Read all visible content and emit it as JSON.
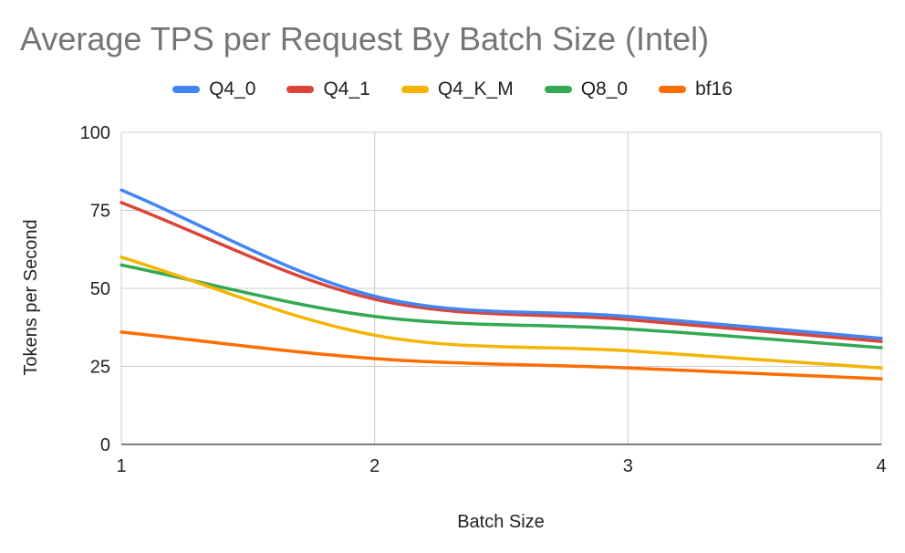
{
  "chart_data": {
    "type": "line",
    "title": "Average TPS per Request By Batch Size (Intel)",
    "xlabel": "Batch Size",
    "ylabel": "Tokens per Second",
    "x": [
      1,
      2,
      3,
      4
    ],
    "x_tick_labels": [
      "1",
      "2",
      "3",
      "4"
    ],
    "ylim": [
      0,
      100
    ],
    "y_ticks": [
      0,
      25,
      50,
      75,
      100
    ],
    "y_tick_labels": [
      "0",
      "25",
      "50",
      "75",
      "100"
    ],
    "grid": true,
    "legend_position": "top-center",
    "series": [
      {
        "name": "Q4_0",
        "color": "#4285F4",
        "values": [
          81.5,
          47.5,
          41,
          34
        ]
      },
      {
        "name": "Q4_1",
        "color": "#DB4437",
        "values": [
          77.5,
          46.5,
          40,
          33
        ]
      },
      {
        "name": "Q4_K_M",
        "color": "#F4B400",
        "values": [
          60,
          35,
          30,
          24.5
        ]
      },
      {
        "name": "Q8_0",
        "color": "#34A853",
        "values": [
          57.5,
          41,
          37,
          31
        ]
      },
      {
        "name": "bf16",
        "color": "#FF6D01",
        "values": [
          36,
          27.5,
          24.5,
          21
        ]
      }
    ]
  }
}
